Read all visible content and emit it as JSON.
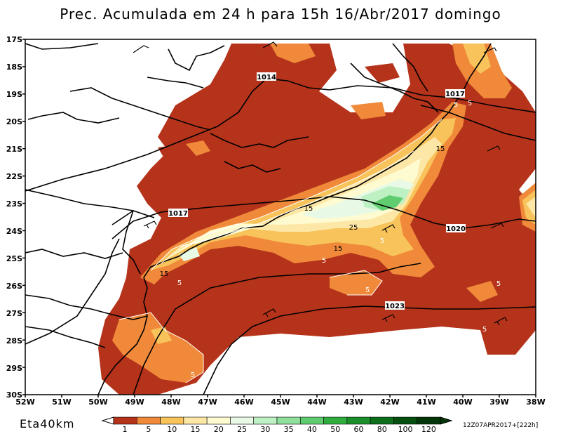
{
  "title": "Prec. Acumulada em 24 h para 15h 16/Abr/2017 domingo",
  "model_label": "Eta40km",
  "run_label": "12Z07APR2017+[222h]",
  "lat_labels": [
    "17S",
    "18S",
    "19S",
    "20S",
    "21S",
    "22S",
    "23S",
    "24S",
    "25S",
    "26S",
    "27S",
    "28S",
    "29S",
    "30S"
  ],
  "lon_labels": [
    "52W",
    "51W",
    "50W",
    "49W",
    "48W",
    "47W",
    "46W",
    "45W",
    "44W",
    "43W",
    "42W",
    "41W",
    "40W",
    "39W",
    "38W"
  ],
  "isobar_labels": [
    "1014",
    "1017",
    "1017",
    "1020",
    "1023"
  ],
  "precip_labels": [
    "5",
    "5",
    "15",
    "15",
    "15",
    "25",
    "15",
    "5",
    "5",
    "5",
    "5",
    "5",
    "5",
    "5"
  ],
  "legend": {
    "values": [
      "1",
      "5",
      "10",
      "15",
      "20",
      "25",
      "30",
      "35",
      "40",
      "50",
      "60",
      "80",
      "100",
      "120"
    ],
    "colors": [
      "#b5331a",
      "#f08a3a",
      "#f7c35a",
      "#fde7a6",
      "#fffbd0",
      "#e8fae6",
      "#bdf0c2",
      "#8fe09c",
      "#5fcc6f",
      "#2fae3f",
      "#1c8f2c",
      "#0d6e1c",
      "#055010",
      "#023608"
    ]
  },
  "colors": {
    "precip_1_5": "#b5331a",
    "precip_5_10": "#f08a3a",
    "precip_10_15": "#f7c35a",
    "precip_15_20": "#fde7a6",
    "precip_20_25": "#fffbd0",
    "precip_25_30": "#e8fae6",
    "precip_30_35": "#bdf0c2",
    "precip_40_50": "#5fcc6f"
  }
}
